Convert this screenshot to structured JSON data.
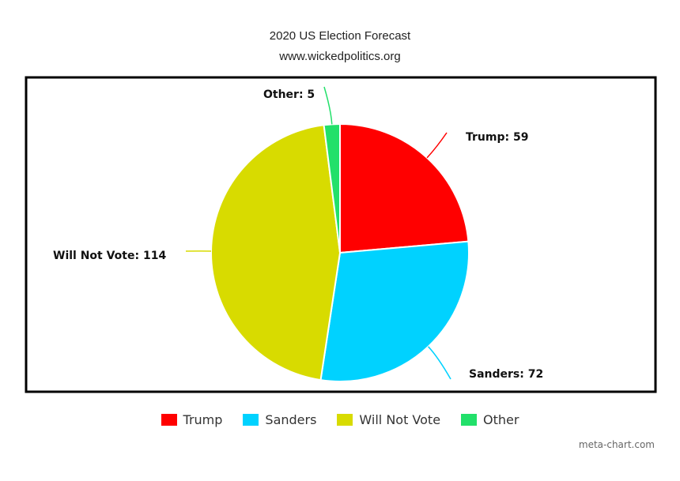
{
  "header": {
    "title": "2020 US Election Forecast",
    "subtitle": "www.wickedpolitics.org"
  },
  "chart_data": {
    "type": "pie",
    "title": "2020 US Election Forecast",
    "subtitle": "www.wickedpolitics.org",
    "categories": [
      "Trump",
      "Sanders",
      "Will Not Vote",
      "Other"
    ],
    "values": [
      59,
      72,
      114,
      5
    ],
    "labels": [
      "Trump: 59",
      "Sanders: 72",
      "Will Not Vote: 114",
      "Other: 5"
    ],
    "colors": [
      "#ff0000",
      "#00d2ff",
      "#d8db00",
      "#22e06a"
    ],
    "legend_position": "bottom"
  },
  "legend": {
    "items": [
      {
        "label": "Trump",
        "color": "#ff0000"
      },
      {
        "label": "Sanders",
        "color": "#00d2ff"
      },
      {
        "label": "Will Not Vote",
        "color": "#d8db00"
      },
      {
        "label": "Other",
        "color": "#22e06a"
      }
    ]
  },
  "footer": {
    "watermark": "meta-chart.com"
  }
}
